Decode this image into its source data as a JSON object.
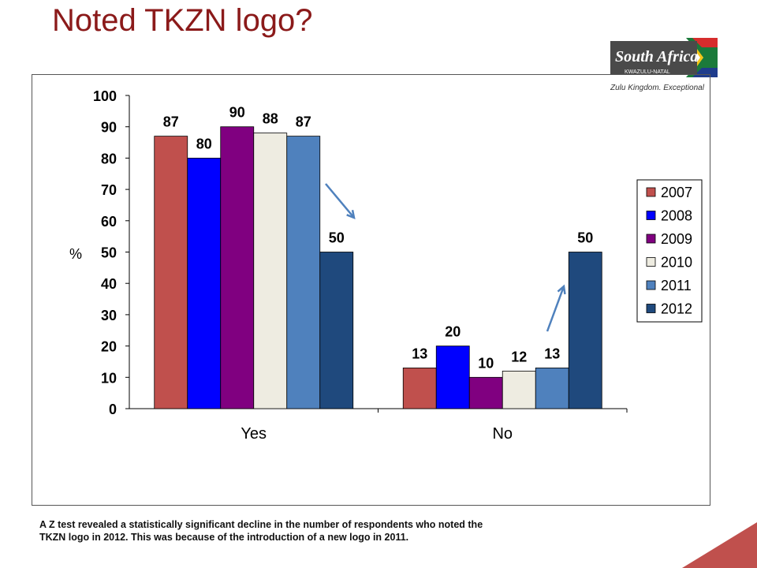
{
  "slide": {
    "title": "Noted TKZN logo?",
    "footnote": "A Z test revealed a statistically significant decline in the number of respondents who noted the TKZN logo in 2012. This was because of the introduction of a new logo in 2011."
  },
  "logo": {
    "brand": "South Africa",
    "region": "KWAZULU-NATAL",
    "tagline": "Zulu Kingdom. Exceptional"
  },
  "chart_data": {
    "type": "bar",
    "categories": [
      "Yes",
      "No"
    ],
    "ylabel": "%",
    "ylim": [
      0,
      100
    ],
    "yticks": [
      0,
      10,
      20,
      30,
      40,
      50,
      60,
      70,
      80,
      90,
      100
    ],
    "grid": false,
    "legend_position": "right",
    "series": [
      {
        "name": "2007",
        "values": [
          87,
          13
        ],
        "color": "#c0504d"
      },
      {
        "name": "2008",
        "values": [
          80,
          20
        ],
        "color": "#0000ff"
      },
      {
        "name": "2009",
        "values": [
          90,
          10
        ],
        "color": "#800080"
      },
      {
        "name": "2010",
        "values": [
          88,
          12
        ],
        "color": "#eeece1"
      },
      {
        "name": "2011",
        "values": [
          87,
          13
        ],
        "color": "#4f81bd"
      },
      {
        "name": "2012",
        "values": [
          50,
          50
        ],
        "color": "#1f497d"
      }
    ]
  },
  "colors": {
    "title": "#8b1a1a",
    "arrow": "#4f81bd",
    "corner_accent": "#c0504d"
  }
}
